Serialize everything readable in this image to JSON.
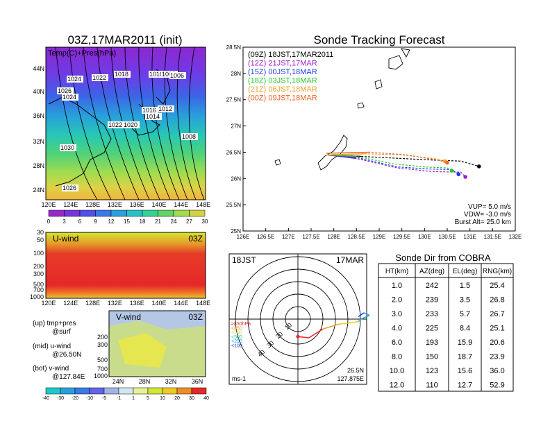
{
  "map": {
    "title": "03Z,17MAR2011 (init)",
    "label": "Temp(C)+Pres(hPa)",
    "lat_labels": [
      "44N",
      "40N",
      "36N",
      "32N",
      "28N",
      "24N"
    ],
    "lon_labels": [
      "120E",
      "124E",
      "128E",
      "132E",
      "136E",
      "140E",
      "144E",
      "148E"
    ],
    "colorbar_labels": [
      "0",
      "3",
      "6",
      "9",
      "12",
      "15",
      "18",
      "21",
      "24",
      "27",
      "30"
    ],
    "pressure_labels": [
      "1024",
      "1022",
      "1018",
      "1010",
      "1008",
      "1006",
      "1026",
      "1024",
      "1016",
      "1012",
      "1014",
      "1022",
      "1020",
      "1008",
      "1030",
      "1026"
    ]
  },
  "uwind": {
    "title": "U-wind",
    "time": "03Z",
    "levels": [
      "30",
      "50",
      "100",
      "200",
      "300",
      "500",
      "700",
      "1000"
    ],
    "lon_labels": [
      "120E",
      "124E",
      "128E",
      "132E",
      "136E",
      "140E",
      "144E",
      "148E"
    ]
  },
  "vwind": {
    "title": "V-wind",
    "time": "03Z",
    "levels": [
      "200",
      "300",
      "500",
      "700",
      "1000"
    ],
    "lat_labels": [
      "24N",
      "28N",
      "32N",
      "36N"
    ],
    "colorbar_labels": [
      "-40",
      "-30",
      "-20",
      "-10",
      "-5",
      "-1",
      "1",
      "5",
      "10",
      "20",
      "30",
      "40"
    ]
  },
  "legend_notes": {
    "up": "(up) tmp+pres",
    "up2": "@surf",
    "mid": "(mid) u-wind",
    "mid2": "@26.50N",
    "bot": "(bot) v-wind",
    "bot2": "@127.84E"
  },
  "colors": {
    "c09": "#000000",
    "c12": "#a020c8",
    "c15": "#1e3ce6",
    "c18": "#28c828",
    "c21": "#f0a028",
    "c00": "#f06428"
  },
  "chart_data": [
    {
      "type": "line",
      "title": "Sonde Tracking Forecast",
      "xlim": [
        126,
        132
      ],
      "ylim": [
        25,
        28.5
      ],
      "x_ticks": [
        "126E",
        "126.5E",
        "127E",
        "127.5E",
        "128E",
        "128.5E",
        "129E",
        "129.5E",
        "130E",
        "130.5E",
        "131E",
        "131.5E",
        "132E"
      ],
      "y_ticks": [
        "28.5N",
        "28N",
        "27.5N",
        "27N",
        "26.5N",
        "26N",
        "25.5N",
        "25N"
      ],
      "series": [
        {
          "name": "(09Z)  18JST,17MAR2011",
          "color": "#000000",
          "x": [
            127.84,
            128.6,
            129.5,
            130.2,
            130.8,
            131.2
          ],
          "y": [
            26.45,
            26.42,
            26.38,
            26.35,
            26.33,
            26.23
          ]
        },
        {
          "name": "(12Z)  21JST,17MAR",
          "color": "#a020c8",
          "x": [
            127.84,
            128.5,
            129.4,
            130.2,
            130.8,
            130.9
          ],
          "y": [
            26.45,
            26.38,
            26.2,
            26.13,
            26.12,
            26.03
          ]
        },
        {
          "name": "(15Z)  00JST,18MAR",
          "color": "#1e3ce6",
          "x": [
            127.84,
            128.5,
            129.4,
            130.1,
            130.6,
            130.75
          ],
          "y": [
            26.45,
            26.4,
            26.22,
            26.18,
            26.17,
            26.08
          ]
        },
        {
          "name": "(18Z)  03JST,18MAR",
          "color": "#28c828",
          "x": [
            127.84,
            128.5,
            129.3,
            130.0,
            130.5,
            130.6
          ],
          "y": [
            26.45,
            26.42,
            26.28,
            26.22,
            26.2,
            26.15
          ]
        },
        {
          "name": "(21Z)  06JST,18MAR",
          "color": "#f0a028",
          "x": [
            127.84,
            128.7,
            129.5,
            130.2,
            130.45
          ],
          "y": [
            26.45,
            26.47,
            26.45,
            26.38,
            26.33
          ]
        },
        {
          "name": "(00Z)  09JST,18MAR",
          "color": "#f06428",
          "x": [
            127.84,
            128.8,
            129.6,
            130.3,
            130.5
          ],
          "y": [
            26.48,
            26.5,
            26.45,
            26.35,
            26.3
          ]
        }
      ],
      "annotations": [
        "VUP= 5.0 m/s",
        "VDW= -3.0 m/s",
        "Burst Alt= 25.0 km"
      ]
    },
    {
      "type": "scatter",
      "title": "18JST",
      "subtitle": "17MAR",
      "units": "ms-1",
      "location": [
        "26.5N",
        "127.875E"
      ],
      "ring_labels": [
        "10",
        "20",
        "30",
        "40"
      ],
      "level_legend": [
        "≥850hPa",
        "<850",
        "<700",
        "<500",
        "<250",
        "<100"
      ],
      "level_colors": [
        "#e62828",
        "#f0a028",
        "#e6d228",
        "#28c8a0",
        "#28a0e6",
        "#1e3ce6"
      ],
      "hodograph": {
        "x": [
          0,
          4,
          9,
          15,
          19,
          22,
          23,
          26,
          24,
          22
        ],
        "y": [
          -14,
          -15,
          -8,
          -4,
          -3,
          -2,
          0,
          3,
          5,
          2
        ]
      }
    },
    {
      "type": "table",
      "title": "Sonde Dir from COBRA",
      "columns": [
        "HT(km)",
        "AZ(deg)",
        "EL(deg)",
        "RNG(km)"
      ],
      "rows": [
        [
          "1.0",
          "242",
          "1.5",
          "25.4"
        ],
        [
          "2.0",
          "239",
          "3.5",
          "26.8"
        ],
        [
          "3.0",
          "233",
          "5.7",
          "26.7"
        ],
        [
          "4.0",
          "225",
          "8.4",
          "25.1"
        ],
        [
          "6.0",
          "193",
          "15.9",
          "20.6"
        ],
        [
          "8.0",
          "150",
          "18.7",
          "23.9"
        ],
        [
          "10.0",
          "123",
          "15.6",
          "36.0"
        ],
        [
          "12.0",
          "110",
          "12.7",
          "52.9"
        ]
      ]
    }
  ]
}
